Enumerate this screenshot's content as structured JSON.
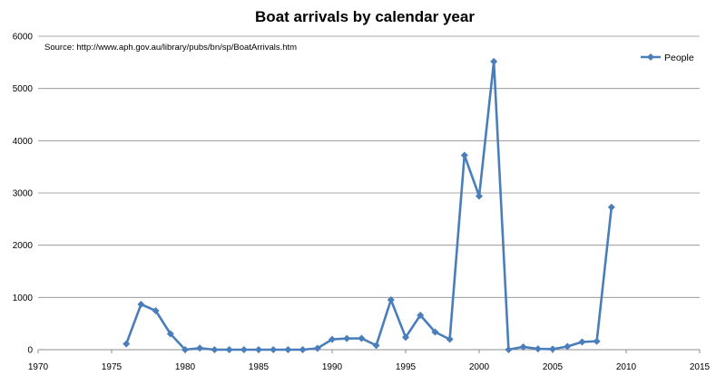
{
  "chart_data": {
    "type": "line",
    "title": "Boat arrivals by calendar year",
    "source_note": "Source:  http://www.aph.gov.au/library/pubs/bn/sp/BoatArrivals.htm",
    "xlabel": "",
    "ylabel": "",
    "xlim": [
      1970,
      2015
    ],
    "ylim": [
      0,
      6000
    ],
    "x_ticks": [
      1970,
      1975,
      1980,
      1985,
      1990,
      1995,
      2000,
      2005,
      2010,
      2015
    ],
    "y_ticks": [
      0,
      1000,
      2000,
      3000,
      4000,
      5000,
      6000
    ],
    "grid": "horizontal",
    "legend_position": "top-right",
    "series": [
      {
        "name": "People",
        "color": "#4a7ebb",
        "marker": "diamond",
        "x": [
          1976,
          1977,
          1978,
          1979,
          1980,
          1981,
          1982,
          1983,
          1984,
          1985,
          1986,
          1987,
          1988,
          1989,
          1990,
          1991,
          1992,
          1993,
          1994,
          1995,
          1996,
          1997,
          1998,
          1999,
          2000,
          2001,
          2002,
          2003,
          2004,
          2005,
          2006,
          2007,
          2008,
          2009
        ],
        "values": [
          111,
          868,
          746,
          304,
          0,
          30,
          0,
          0,
          0,
          0,
          0,
          0,
          0,
          26,
          198,
          214,
          216,
          81,
          953,
          237,
          660,
          339,
          200,
          3721,
          2939,
          5516,
          1,
          53,
          15,
          11,
          60,
          148,
          161,
          2726
        ]
      }
    ]
  }
}
